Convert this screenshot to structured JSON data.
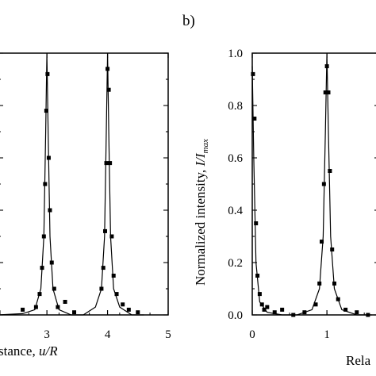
{
  "panel_b_label": "b)",
  "chart_data": [
    {
      "type": "line",
      "panel": "a",
      "title": "",
      "xlabel": "stance, u/R",
      "xlabel_main": "stance, ",
      "xlabel_italic": "u/R",
      "ylabel": "",
      "xlim": [
        2.2,
        5
      ],
      "ylim": [
        0,
        1.0
      ],
      "x_ticks": [
        3,
        4,
        5
      ],
      "x_tick_labels": [
        "3",
        "4",
        "5"
      ],
      "grid": false,
      "series": [
        {
          "style": "solid line",
          "x": [
            2.2,
            2.6,
            2.8,
            2.9,
            2.95,
            2.98,
            3.0,
            3.02,
            3.05,
            3.1,
            3.2,
            3.4,
            3.6,
            3.8,
            3.9,
            3.95,
            3.98,
            4.0,
            4.02,
            4.05,
            4.1,
            4.2,
            4.4,
            4.6
          ],
          "y": [
            0.0,
            0.005,
            0.02,
            0.1,
            0.3,
            0.7,
            1.0,
            0.7,
            0.3,
            0.1,
            0.02,
            0.0,
            0.0,
            0.03,
            0.1,
            0.3,
            0.7,
            1.0,
            0.7,
            0.3,
            0.1,
            0.03,
            0.0,
            0.0
          ]
        },
        {
          "style": "square markers",
          "x": [
            2.2,
            2.6,
            2.82,
            2.88,
            2.92,
            2.95,
            2.97,
            2.99,
            3.01,
            3.03,
            3.05,
            3.08,
            3.12,
            3.18,
            3.3,
            3.45,
            3.9,
            3.93,
            3.96,
            3.98,
            4.0,
            4.02,
            4.04,
            4.07,
            4.1,
            4.15,
            4.25,
            4.35,
            4.5
          ],
          "y": [
            0.01,
            0.02,
            0.03,
            0.08,
            0.18,
            0.3,
            0.5,
            0.78,
            0.92,
            0.6,
            0.4,
            0.2,
            0.1,
            0.03,
            0.05,
            0.01,
            0.1,
            0.18,
            0.32,
            0.58,
            0.94,
            0.86,
            0.58,
            0.3,
            0.15,
            0.08,
            0.04,
            0.02,
            0.01
          ]
        }
      ]
    },
    {
      "type": "line",
      "panel": "b",
      "title": "",
      "xlabel": "Rela",
      "ylabel": "Normalized intensity, I/I_max",
      "ylabel_main": "Normalized intensity, ",
      "ylabel_italic": "I/I",
      "ylabel_sub": "max",
      "xlim": [
        0,
        1.7
      ],
      "ylim": [
        0,
        1.0
      ],
      "x_ticks": [
        0,
        1
      ],
      "x_tick_labels": [
        "0",
        "1"
      ],
      "y_ticks": [
        0.0,
        0.2,
        0.4,
        0.6,
        0.8,
        1.0
      ],
      "y_tick_labels": [
        "0.0",
        "0.2",
        "0.4",
        "0.6",
        "0.8",
        "1.0"
      ],
      "grid": false,
      "series": [
        {
          "style": "solid line",
          "x": [
            0.0,
            0.02,
            0.05,
            0.1,
            0.2,
            0.4,
            0.6,
            0.8,
            0.9,
            0.95,
            0.98,
            1.0,
            1.02,
            1.05,
            1.1,
            1.2,
            1.4,
            1.6
          ],
          "y": [
            0.95,
            0.6,
            0.2,
            0.05,
            0.01,
            0.0,
            0.0,
            0.02,
            0.1,
            0.3,
            0.7,
            1.0,
            0.7,
            0.3,
            0.1,
            0.02,
            0.0,
            0.0
          ]
        },
        {
          "style": "square markers",
          "x": [
            0.01,
            0.03,
            0.05,
            0.07,
            0.1,
            0.13,
            0.16,
            0.2,
            0.3,
            0.4,
            0.55,
            0.7,
            0.85,
            0.9,
            0.93,
            0.96,
            0.98,
            1.0,
            1.02,
            1.04,
            1.07,
            1.1,
            1.15,
            1.25,
            1.4,
            1.55
          ],
          "y": [
            0.92,
            0.75,
            0.35,
            0.15,
            0.08,
            0.04,
            0.02,
            0.03,
            0.01,
            0.02,
            0.0,
            0.01,
            0.04,
            0.12,
            0.28,
            0.5,
            0.85,
            0.95,
            0.85,
            0.55,
            0.25,
            0.12,
            0.06,
            0.02,
            0.01,
            0.0
          ]
        }
      ]
    }
  ]
}
